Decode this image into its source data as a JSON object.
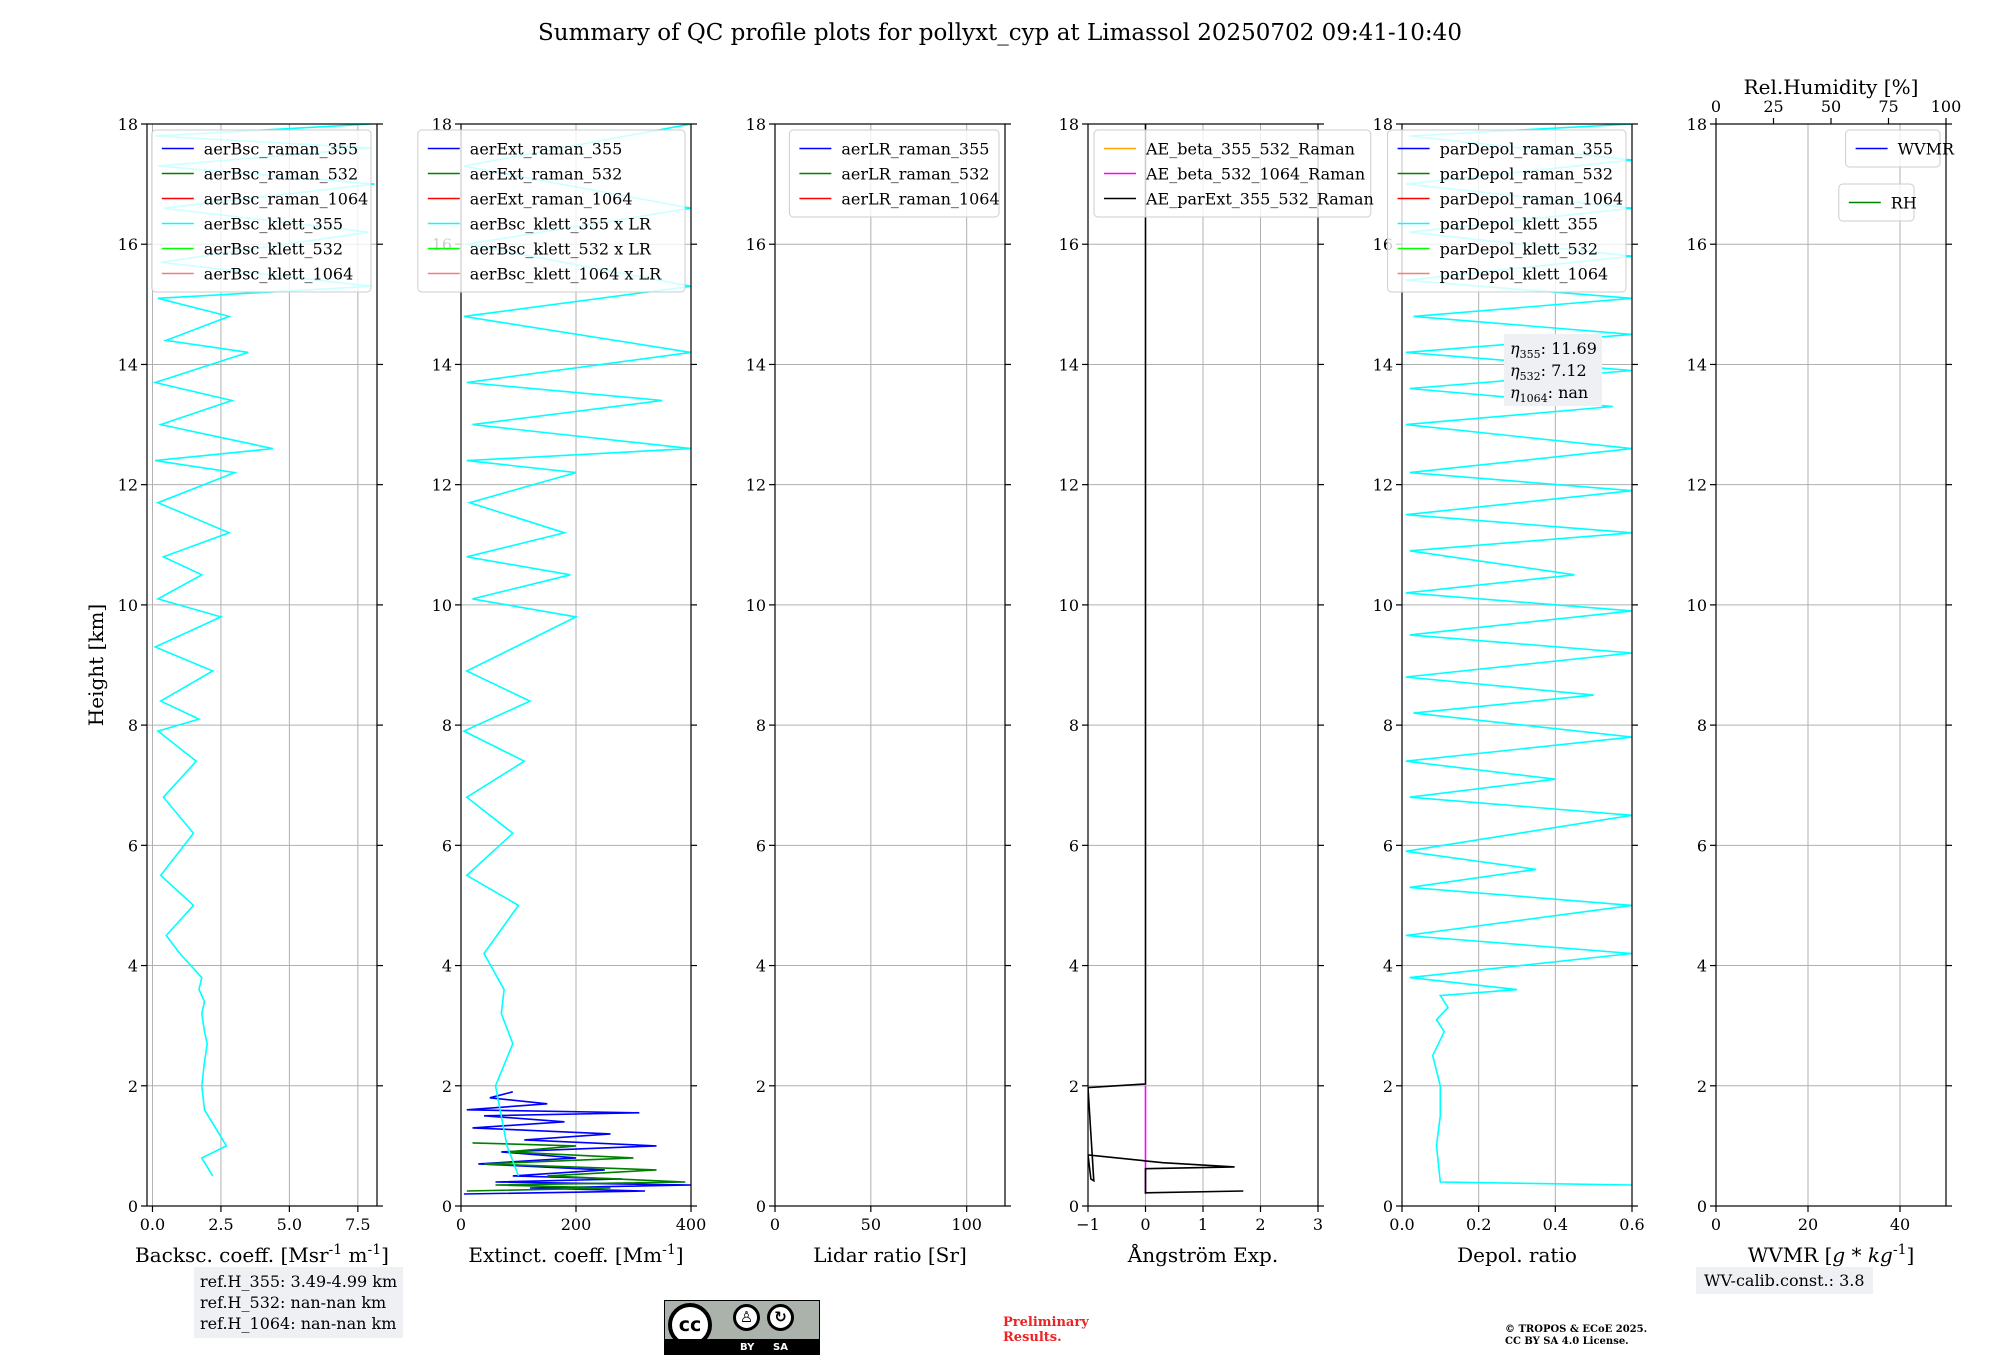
{
  "title": "Summary of QC profile plots for pollyxt_cyp at Limassol 20250702 09:41-10:40",
  "ylabel": "Height [km]",
  "ref_heights": [
    "ref.H_355: 3.49-4.99 km",
    "ref.H_532: nan-nan km",
    "ref.H_1064: nan-nan km"
  ],
  "wv_calib": "WV-calib.const.: 3.8",
  "preliminary": [
    "Preliminary",
    "Results."
  ],
  "copyright": [
    "© TROPOS & ECoE 2025.",
    "CC BY SA 4.0 License."
  ],
  "license_badge": {
    "by": "BY",
    "sa": "SA",
    "cc": "cc"
  },
  "icons": [
    "creative-commons-icon",
    "attribution-person-icon",
    "share-alike-icon"
  ],
  "colors": {
    "raman_355": "#0000ff",
    "raman_532": "#008000",
    "raman_1064": "#ff0000",
    "klett_355": "#00ffff",
    "klett_532": "#00ff00",
    "klett_1064": "#f08080",
    "ae_beta_355_532": "#ffa500",
    "ae_beta_532_1064": "#ff00ff",
    "ae_parext": "#000000",
    "grid": "#b0b0b0",
    "legend_edge": "#cccccc"
  },
  "chart_data": [
    {
      "type": "line",
      "id": "bsc",
      "xlabel": "Backsc. coeff. [Msr$^{-1}$ m$^{-1}$]",
      "xlim": [
        -0.2,
        8.2
      ],
      "ylim": [
        0,
        18
      ],
      "xticks": [
        0,
        2.5,
        5,
        7.5
      ],
      "xticklabels": [
        "0.0",
        "2.5",
        "5.0",
        "7.5"
      ],
      "yticks": [
        0,
        2,
        4,
        6,
        8,
        10,
        12,
        14,
        16,
        18
      ],
      "grid": true,
      "legend_placement": "upper-right",
      "legend": [
        {
          "label": "aerBsc_raman_355",
          "color": "#0000ff"
        },
        {
          "label": "aerBsc_raman_532",
          "color": "#008000"
        },
        {
          "label": "aerBsc_raman_1064",
          "color": "#ff0000"
        },
        {
          "label": "aerBsc_klett_355",
          "color": "#00ffff"
        },
        {
          "label": "aerBsc_klett_532",
          "color": "#00ff00"
        },
        {
          "label": "aerBsc_klett_1064",
          "color": "#f08080"
        }
      ],
      "series": [
        {
          "name": "aerBsc_klett_355",
          "color": "#00ffff",
          "x": [
            2.2,
            1.8,
            2.7,
            2.3,
            1.9,
            1.8,
            1.9,
            2.0,
            1.9,
            1.8,
            1.9,
            1.7,
            1.8,
            1.0,
            0.5,
            1.5,
            0.3,
            1.5,
            0.4,
            1.6,
            0.2,
            1.7,
            0.3,
            2.2,
            0.1,
            2.5,
            0.2,
            1.8,
            0.4,
            2.8,
            0.2,
            3.0,
            0.1,
            4.4,
            0.3,
            2.9,
            0.1,
            3.5,
            0.5,
            2.8,
            0.2,
            8.0,
            0.3,
            7.9,
            0.4,
            8.1,
            0.2,
            8.0,
            0.1,
            8.0
          ],
          "y": [
            0.5,
            0.8,
            1.0,
            1.3,
            1.6,
            2.0,
            2.4,
            2.7,
            2.9,
            3.2,
            3.4,
            3.6,
            3.8,
            4.2,
            4.5,
            5.0,
            5.5,
            6.2,
            6.8,
            7.4,
            7.9,
            8.1,
            8.4,
            8.9,
            9.3,
            9.8,
            10.1,
            10.5,
            10.8,
            11.2,
            11.7,
            12.2,
            12.4,
            12.6,
            13.0,
            13.4,
            13.7,
            14.2,
            14.4,
            14.8,
            15.1,
            15.3,
            15.7,
            16.2,
            16.6,
            17.0,
            17.3,
            17.6,
            17.8,
            18.0
          ]
        }
      ]
    },
    {
      "type": "line",
      "id": "ext",
      "xlabel": "Extinct. coeff. [Mm$^{-1}$]",
      "xlim": [
        0,
        400
      ],
      "ylim": [
        0,
        18
      ],
      "xticks": [
        0,
        200,
        400
      ],
      "xticklabels": [
        "0",
        "200",
        "400"
      ],
      "yticks": [
        0,
        2,
        4,
        6,
        8,
        10,
        12,
        14,
        16,
        18
      ],
      "grid": true,
      "legend_placement": "upper-right",
      "legend": [
        {
          "label": "aerExt_raman_355",
          "color": "#0000ff"
        },
        {
          "label": "aerExt_raman_532",
          "color": "#008000"
        },
        {
          "label": "aerExt_raman_1064",
          "color": "#ff0000"
        },
        {
          "label": "aerBsc_klett_355 x LR",
          "color": "#00ffff"
        },
        {
          "label": "aerBsc_klett_532 x LR",
          "color": "#00ff00"
        },
        {
          "label": "aerBsc_klett_1064 x LR",
          "color": "#f08080"
        }
      ],
      "series": [
        {
          "name": "aerExt_raman_355",
          "color": "#0000ff",
          "x": [
            5,
            320,
            120,
            400,
            60,
            280,
            90,
            250,
            30,
            200,
            70,
            340,
            110,
            260,
            20,
            180,
            40,
            310,
            10,
            150,
            50,
            90
          ],
          "y": [
            0.2,
            0.25,
            0.3,
            0.35,
            0.4,
            0.45,
            0.5,
            0.6,
            0.7,
            0.8,
            0.9,
            1.0,
            1.1,
            1.2,
            1.3,
            1.4,
            1.5,
            1.55,
            1.6,
            1.7,
            1.8,
            1.9
          ]
        },
        {
          "name": "aerExt_raman_532",
          "color": "#008000",
          "x": [
            10,
            260,
            60,
            390,
            150,
            340,
            40,
            300,
            80,
            200,
            20
          ],
          "y": [
            0.25,
            0.3,
            0.35,
            0.4,
            0.5,
            0.6,
            0.7,
            0.8,
            0.9,
            1.0,
            1.05
          ]
        },
        {
          "name": "aerBsc_klett_355 x LR",
          "color": "#00ffff",
          "x": [
            100,
            80,
            60,
            90,
            70,
            75,
            40,
            100,
            10,
            90,
            10,
            110,
            5,
            120,
            10,
            200,
            20,
            190,
            10,
            180,
            15,
            200,
            10,
            400,
            20,
            350,
            10,
            400,
            5,
            400,
            10,
            400,
            5,
            400
          ],
          "y": [
            0.5,
            1.0,
            2.0,
            2.7,
            3.2,
            3.6,
            4.2,
            5.0,
            5.5,
            6.2,
            6.8,
            7.4,
            7.9,
            8.4,
            8.9,
            9.8,
            10.1,
            10.5,
            10.8,
            11.2,
            11.7,
            12.2,
            12.4,
            12.6,
            13.0,
            13.4,
            13.7,
            14.2,
            14.8,
            15.3,
            16.0,
            16.6,
            17.3,
            18.0
          ]
        }
      ]
    },
    {
      "type": "line",
      "id": "lr",
      "xlabel": "Lidar ratio [Sr]",
      "xlim": [
        0,
        120
      ],
      "ylim": [
        0,
        18
      ],
      "xticks": [
        0,
        50,
        100
      ],
      "xticklabels": [
        "0",
        "50",
        "100"
      ],
      "yticks": [
        0,
        2,
        4,
        6,
        8,
        10,
        12,
        14,
        16,
        18
      ],
      "grid": true,
      "legend_placement": "upper-right",
      "legend": [
        {
          "label": "aerLR_raman_355",
          "color": "#0000ff"
        },
        {
          "label": "aerLR_raman_532",
          "color": "#008000"
        },
        {
          "label": "aerLR_raman_1064",
          "color": "#ff0000"
        }
      ],
      "series": []
    },
    {
      "type": "line",
      "id": "ae",
      "xlabel": "Ångström Exp.",
      "xlim": [
        -1,
        3
      ],
      "ylim": [
        0,
        18
      ],
      "xticks": [
        -1,
        0,
        1,
        2,
        3
      ],
      "xticklabels": [
        "−1",
        "0",
        "1",
        "2",
        "3"
      ],
      "yticks": [
        0,
        2,
        4,
        6,
        8,
        10,
        12,
        14,
        16,
        18
      ],
      "grid": true,
      "legend_placement": "upper-left",
      "legend": [
        {
          "label": "AE_beta_355_532_Raman",
          "color": "#ffa500"
        },
        {
          "label": "AE_beta_532_1064_Raman",
          "color": "#ff00ff"
        },
        {
          "label": "AE_parExt_355_532_Raman",
          "color": "#000000"
        }
      ],
      "series": [
        {
          "name": "AE_beta_532_1064_Raman",
          "color": "#ff00ff",
          "x": [
            0,
            0
          ],
          "y": [
            0.2,
            2.0
          ]
        },
        {
          "name": "AE_parExt_355_532_Raman",
          "color": "#000000",
          "x": [
            1.7,
            0.0,
            0.0,
            1.55,
            0.3,
            -1.0,
            -0.95,
            -0.9,
            -1.0,
            0.0,
            0.0
          ],
          "y": [
            0.25,
            0.22,
            0.62,
            0.65,
            0.72,
            0.85,
            0.45,
            0.42,
            1.97,
            2.03,
            18.0
          ]
        }
      ]
    },
    {
      "type": "line",
      "id": "depol",
      "xlabel": "Depol. ratio",
      "xlim": [
        0,
        0.6
      ],
      "ylim": [
        0,
        18
      ],
      "xticks": [
        0,
        0.2,
        0.4,
        0.6
      ],
      "xticklabels": [
        "0.0",
        "0.2",
        "0.4",
        "0.6"
      ],
      "yticks": [
        0,
        2,
        4,
        6,
        8,
        10,
        12,
        14,
        16,
        18
      ],
      "grid": true,
      "legend_placement": "upper-right",
      "annotations": [
        "355",
        "11.69",
        "532",
        "7.12",
        "1064",
        "nan"
      ],
      "legend": [
        {
          "label": "parDepol_raman_355",
          "color": "#0000ff"
        },
        {
          "label": "parDepol_raman_532",
          "color": "#008000"
        },
        {
          "label": "parDepol_raman_1064",
          "color": "#ff0000"
        },
        {
          "label": "parDepol_klett_355",
          "color": "#00ffff"
        },
        {
          "label": "parDepol_klett_532",
          "color": "#00ff00"
        },
        {
          "label": "parDepol_klett_1064",
          "color": "#f08080"
        }
      ],
      "series": [
        {
          "name": "parDepol_klett_355",
          "color": "#00ffff",
          "x": [
            0.6,
            0.1,
            0.09,
            0.1,
            0.1,
            0.08,
            0.11,
            0.09,
            0.12,
            0.1,
            0.3,
            0.02,
            0.6,
            0.01,
            0.6,
            0.02,
            0.35,
            0.01,
            0.6,
            0.02,
            0.4,
            0.01,
            0.6,
            0.03,
            0.5,
            0.01,
            0.6,
            0.02,
            0.6,
            0.01,
            0.45,
            0.02,
            0.6,
            0.01,
            0.6,
            0.02,
            0.6,
            0.01,
            0.55,
            0.02,
            0.6,
            0.01,
            0.6,
            0.03,
            0.6,
            0.01,
            0.6,
            0.02,
            0.6,
            0.01,
            0.6,
            0.02,
            0.6
          ],
          "y": [
            0.35,
            0.4,
            1.0,
            1.5,
            2.0,
            2.5,
            2.9,
            3.1,
            3.3,
            3.5,
            3.6,
            3.8,
            4.2,
            4.5,
            5.0,
            5.3,
            5.6,
            5.9,
            6.5,
            6.8,
            7.1,
            7.4,
            7.8,
            8.2,
            8.5,
            8.8,
            9.2,
            9.5,
            9.9,
            10.2,
            10.5,
            10.9,
            11.2,
            11.5,
            11.9,
            12.2,
            12.6,
            13.0,
            13.3,
            13.6,
            13.9,
            14.2,
            14.5,
            14.8,
            15.1,
            15.4,
            15.8,
            16.2,
            16.6,
            17.0,
            17.4,
            17.8,
            18.0
          ]
        }
      ]
    },
    {
      "type": "line",
      "id": "wv",
      "xlabel": "WVMR [$g*kg^{-1}$]",
      "x2label": "Rel.Humidity [%]",
      "xlim": [
        0,
        50
      ],
      "ylim": [
        0,
        18
      ],
      "xticks": [
        0,
        20,
        40
      ],
      "xticklabels": [
        "0",
        "20",
        "40"
      ],
      "x2lim": [
        0,
        100
      ],
      "x2ticks": [
        0,
        25,
        50,
        75,
        100
      ],
      "x2ticklabels": [
        "0",
        "25",
        "50",
        "75",
        "100"
      ],
      "yticks": [
        0,
        2,
        4,
        6,
        8,
        10,
        12,
        14,
        16,
        18
      ],
      "grid": true,
      "legend_placement": "upper-right",
      "legend": [
        {
          "label": "WVMR",
          "color": "#0000ff"
        }
      ],
      "legend2": [
        {
          "label": "RH",
          "color": "#008000"
        }
      ],
      "series": []
    }
  ]
}
